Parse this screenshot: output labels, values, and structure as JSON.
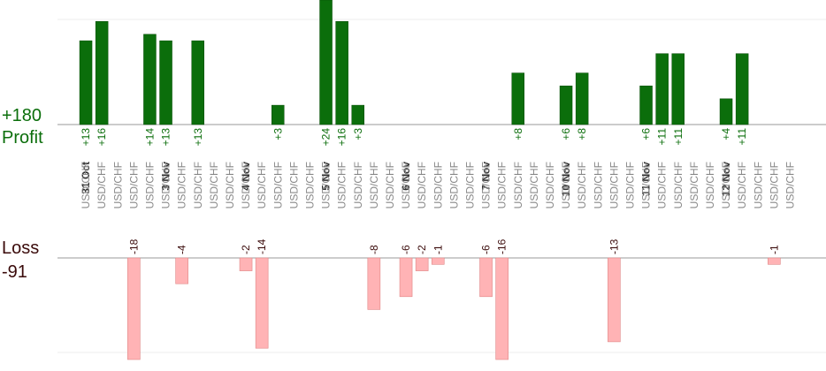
{
  "summary": {
    "profit_total": "+180",
    "profit_label": "Profit",
    "loss_label": "Loss",
    "loss_total": "-91"
  },
  "colors": {
    "profit_bar": "#0b6e0b",
    "loss_bar": "#ffb3b5",
    "profit_text": "#0b6e0b",
    "loss_text": "#3a0a0a",
    "instrument_text": "#888888",
    "grid": "#eeeeee",
    "axis": "#999999"
  },
  "chart_data": {
    "type": "bar",
    "layout": "diverging",
    "instrument": "USD/CHF",
    "days": [
      {
        "date": "31 Oct",
        "trades": [
          13,
          16,
          null,
          -18,
          14
        ]
      },
      {
        "date": "3 Nov",
        "trades": [
          13,
          -4,
          13,
          null,
          null
        ]
      },
      {
        "date": "4 Nov",
        "trades": [
          -2,
          -14,
          3,
          null,
          null
        ]
      },
      {
        "date": "5 Nov",
        "trades": [
          24,
          16,
          3,
          -8,
          null
        ]
      },
      {
        "date": "6 Nov",
        "trades": [
          -6,
          -2,
          -1,
          null,
          null
        ]
      },
      {
        "date": "7 Nov",
        "trades": [
          -6,
          -16,
          8,
          null,
          null
        ]
      },
      {
        "date": "10 Nov",
        "trades": [
          6,
          8,
          null,
          -13,
          null
        ]
      },
      {
        "date": "11 Nov",
        "trades": [
          6,
          11,
          11,
          null,
          null
        ]
      },
      {
        "date": "12 Nov",
        "trades": [
          4,
          11,
          null,
          -1,
          null
        ]
      }
    ],
    "grid": true
  }
}
